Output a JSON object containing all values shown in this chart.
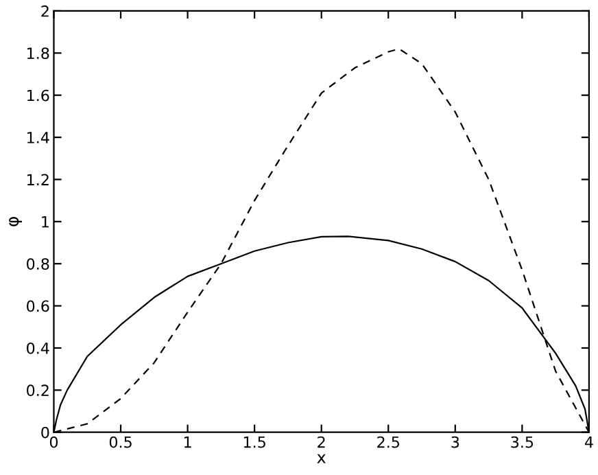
{
  "chart_data": {
    "type": "line",
    "xlabel": "x",
    "ylabel": "φ",
    "xlim": [
      0,
      4
    ],
    "ylim": [
      0,
      2
    ],
    "xticks": [
      0,
      0.5,
      1,
      1.5,
      2,
      2.5,
      3,
      3.5,
      4
    ],
    "yticks": [
      0,
      0.2,
      0.4,
      0.6,
      0.8,
      1,
      1.2,
      1.4,
      1.6,
      1.8,
      2
    ],
    "grid": false,
    "legend": false,
    "marker": "none",
    "series": [
      {
        "color": "#000000",
        "line_style": "solid",
        "x": [
          0,
          0.02,
          0.05,
          0.1,
          0.25,
          0.5,
          0.75,
          1,
          1.25,
          1.5,
          1.75,
          2,
          2.2,
          2.5,
          2.75,
          3,
          3.25,
          3.5,
          3.75,
          3.9,
          3.97,
          4
        ],
        "values": [
          0,
          0.06,
          0.13,
          0.2,
          0.36,
          0.51,
          0.64,
          0.74,
          0.8,
          0.86,
          0.9,
          0.928,
          0.93,
          0.91,
          0.87,
          0.81,
          0.72,
          0.59,
          0.375,
          0.22,
          0.11,
          0
        ]
      },
      {
        "color": "#000000",
        "line_style": "dashed",
        "x": [
          0,
          0.25,
          0.5,
          0.75,
          1,
          1.25,
          1.5,
          1.73,
          2,
          2.25,
          2.5,
          2.58,
          2.75,
          3,
          3.25,
          3.5,
          3.75,
          4
        ],
        "values": [
          0,
          0.04,
          0.16,
          0.33,
          0.57,
          0.8,
          1.1,
          1.34,
          1.61,
          1.73,
          1.806,
          1.82,
          1.75,
          1.52,
          1.2,
          0.77,
          0.29,
          0
        ]
      }
    ]
  }
}
